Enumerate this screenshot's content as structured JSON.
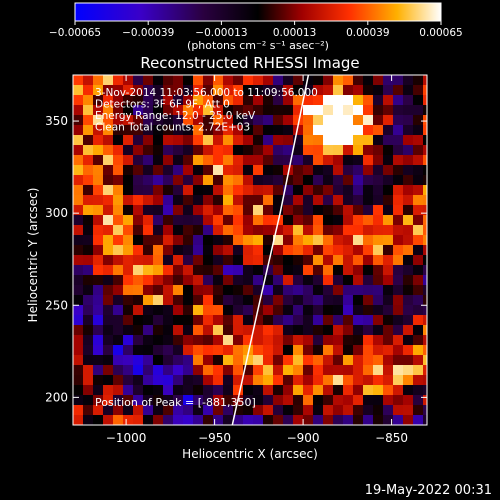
{
  "chart_data": {
    "type": "heatmap",
    "title": "Reconstructed RHESSI Image",
    "xlabel": "Heliocentric X (arcsec)",
    "ylabel": "Heliocentric Y (arcsec)",
    "xlim": [
      -1030,
      -830
    ],
    "ylim": [
      185,
      375
    ],
    "x_ticks": [
      -1000,
      -950,
      -900,
      -850
    ],
    "y_ticks": [
      200,
      250,
      300,
      350
    ],
    "x_tick_labels": [
      "−1000",
      "−950",
      "−900",
      "−850"
    ],
    "y_tick_labels": [
      "200",
      "250",
      "300",
      "350"
    ],
    "colorbar": {
      "range": [
        -0.00065,
        0.00065
      ],
      "ticks": [
        -0.00065,
        -0.00039,
        -0.00013,
        0.00013,
        0.00039,
        0.00065
      ],
      "tick_labels": [
        "−0.00065",
        "−0.00039",
        "−0.00013",
        "0.00013",
        "0.00039",
        "0.00065"
      ],
      "units_label": "(photons cm⁻² s⁻¹ asec⁻²)",
      "colormap": [
        "#0000ff",
        "#4b00b0",
        "#000000",
        "#8b0000",
        "#ff4500",
        "#ffa500",
        "#ffffff"
      ]
    },
    "annotations": [
      "3-Nov-2014 11:03:56.000 to 11:09:56.000",
      "Detectors: 3F 6F 9F, Att 0",
      "Energy Range: 12.0 - 25.0 keV",
      "Clean     Total counts: 2.72E+03"
    ],
    "peak_label": "Position of Peak = [-881,350]",
    "peak_position": [
      -881,
      350
    ],
    "limb_curve": [
      [
        -940,
        185
      ],
      [
        -925,
        250
      ],
      [
        -913,
        300
      ],
      [
        -897,
        375
      ]
    ]
  },
  "footer": {
    "timestamp": "19-May-2022 00:31"
  }
}
